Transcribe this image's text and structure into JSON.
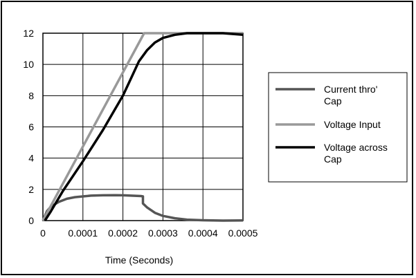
{
  "chart_data": {
    "type": "line",
    "xlabel": "Time (Seconds)",
    "ylabel": "",
    "xlim": [
      0,
      0.0005
    ],
    "ylim": [
      0,
      12
    ],
    "x_ticks": [
      "0",
      "0.0001",
      "0.0002",
      "0.0003",
      "0.0004",
      "0.0005"
    ],
    "y_ticks": [
      "0",
      "2",
      "4",
      "6",
      "8",
      "10",
      "12"
    ],
    "grid": true,
    "legend_position": "right",
    "series": [
      {
        "name": "Current thro' Cap",
        "color": "#555555",
        "points": [
          [
            0,
            0
          ],
          [
            1e-05,
            0.6
          ],
          [
            2e-05,
            0.9
          ],
          [
            4e-05,
            1.2
          ],
          [
            6e-05,
            1.4
          ],
          [
            8e-05,
            1.5
          ],
          [
            0.0001,
            1.55
          ],
          [
            0.00012,
            1.6
          ],
          [
            0.00015,
            1.62
          ],
          [
            0.00018,
            1.63
          ],
          [
            0.0002,
            1.62
          ],
          [
            0.00022,
            1.6
          ],
          [
            0.000245,
            1.57
          ],
          [
            0.00025,
            1.55
          ],
          [
            0.00025,
            1.1
          ],
          [
            0.00026,
            0.85
          ],
          [
            0.00028,
            0.5
          ],
          [
            0.0003,
            0.3
          ],
          [
            0.00033,
            0.15
          ],
          [
            0.00036,
            0.06
          ],
          [
            0.0004,
            0.02
          ],
          [
            0.00045,
            0.0
          ],
          [
            0.0005,
            0.01
          ]
        ]
      },
      {
        "name": "Voltage Input",
        "color": "#999999",
        "points": [
          [
            0,
            0
          ],
          [
            0.000253,
            12
          ],
          [
            0.0005,
            12
          ]
        ]
      },
      {
        "name": "Voltage across Cap",
        "color": "#000000",
        "points": [
          [
            5e-06,
            0
          ],
          [
            2e-05,
            0.6
          ],
          [
            5e-05,
            1.9
          ],
          [
            0.0001,
            3.8
          ],
          [
            0.00015,
            5.8
          ],
          [
            0.0002,
            8.0
          ],
          [
            0.00022,
            9.1
          ],
          [
            0.00024,
            10.2
          ],
          [
            0.00026,
            10.9
          ],
          [
            0.00028,
            11.4
          ],
          [
            0.0003,
            11.7
          ],
          [
            0.00033,
            11.9
          ],
          [
            0.00036,
            12.0
          ],
          [
            0.0004,
            12.0
          ],
          [
            0.00045,
            12.0
          ],
          [
            0.0005,
            11.9
          ]
        ]
      }
    ]
  }
}
